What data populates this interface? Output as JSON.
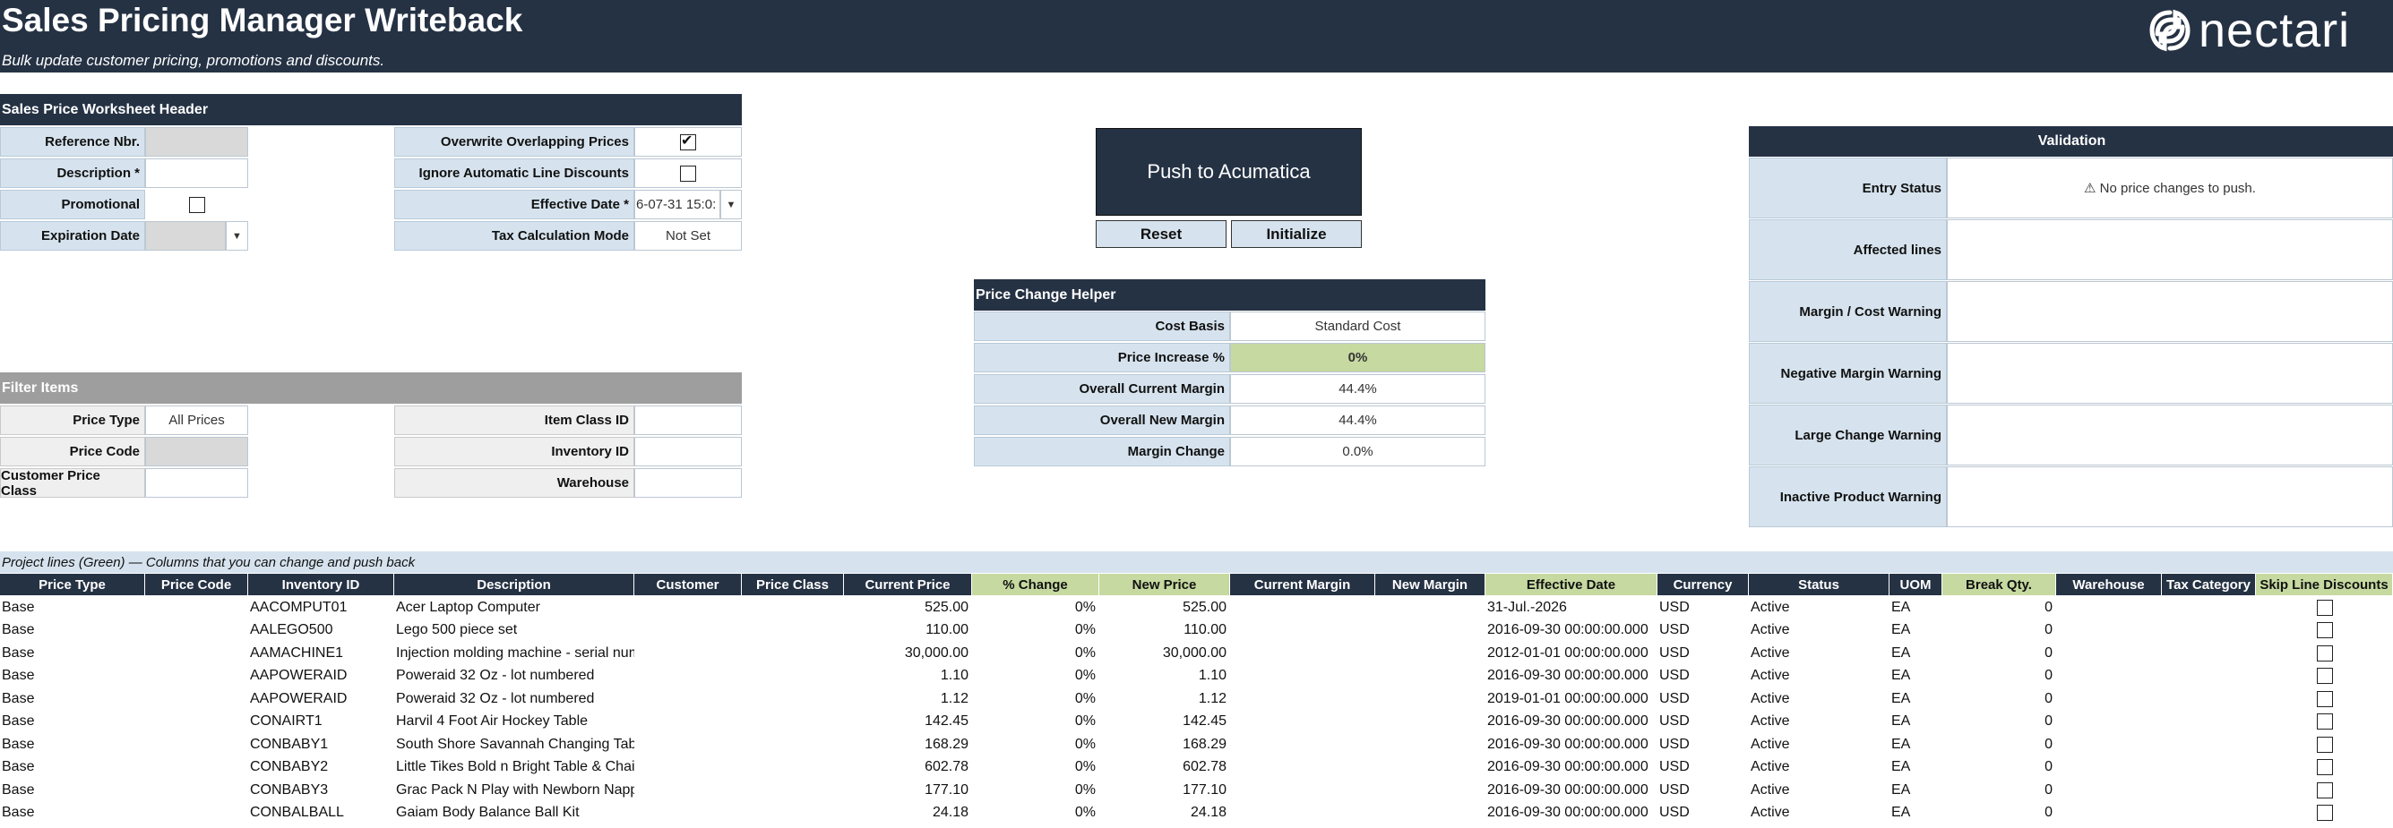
{
  "header": {
    "title": "Sales Pricing Manager Writeback",
    "subtitle": "Bulk update customer pricing, promotions and discounts.",
    "logo_text": "nectari"
  },
  "worksheet_header": {
    "title": "Sales Price Worksheet Header",
    "reference_nbr_label": "Reference Nbr.",
    "reference_nbr_value": "",
    "description_label": "Description *",
    "description_value": "",
    "promotional_label": "Promotional",
    "promotional_checked": false,
    "expiration_date_label": "Expiration Date",
    "expiration_date_value": "",
    "overwrite_label": "Overwrite Overlapping Prices",
    "overwrite_checked": true,
    "ignore_label": "Ignore Automatic Line Discounts",
    "ignore_checked": false,
    "effective_date_label": "Effective Date *",
    "effective_date_value": "6-07-31 15:0:",
    "tax_mode_label": "Tax Calculation Mode",
    "tax_mode_value": "Not Set"
  },
  "actions": {
    "push_label": "Push to Acumatica",
    "reset_label": "Reset",
    "initialize_label": "Initialize"
  },
  "price_helper": {
    "title": "Price Change Helper",
    "cost_basis_label": "Cost Basis",
    "cost_basis_value": "Standard Cost",
    "price_increase_label": "Price Increase %",
    "price_increase_value": "0%",
    "overall_current_margin_label": "Overall Current Margin",
    "overall_current_margin_value": "44.4%",
    "overall_new_margin_label": "Overall New Margin",
    "overall_new_margin_value": "44.4%",
    "margin_change_label": "Margin Change",
    "margin_change_value": "0.0%"
  },
  "validation": {
    "title": "Validation",
    "entry_status_label": "Entry Status",
    "entry_status_value": "⚠ No price changes to push.",
    "affected_lines_label": "Affected lines",
    "margin_cost_warning_label": "Margin / Cost Warning",
    "negative_margin_warning_label": "Negative Margin Warning",
    "large_change_warning_label": "Large Change Warning",
    "inactive_product_warning_label": "Inactive Product Warning"
  },
  "filter": {
    "title": "Filter Items",
    "price_type_label": "Price Type",
    "price_type_value": "All Prices",
    "price_code_label": "Price Code",
    "price_code_value": "",
    "customer_price_class_label": "Customer Price Class",
    "customer_price_class_value": "",
    "item_class_label": "Item Class ID",
    "item_class_value": "",
    "inventory_id_label": "Inventory ID",
    "inventory_id_value": "",
    "warehouse_label": "Warehouse",
    "warehouse_value": ""
  },
  "grid": {
    "legend": "Project lines  (Green) — Columns that you can change and push back",
    "columns": [
      "Price Type",
      "Price Code",
      "Inventory ID",
      "Description",
      "Customer",
      "Price Class",
      "Current Price",
      "% Change",
      "New Price",
      "Current Margin",
      "New Margin",
      "Effective Date",
      "Currency",
      "Status",
      "UOM",
      "Break Qty.",
      "Warehouse",
      "Tax Category",
      "Skip Line Discounts"
    ],
    "editable_columns": [
      "% Change",
      "New Price",
      "Effective Date",
      "Break Qty.",
      "Skip Line Discounts"
    ],
    "rows": [
      [
        "Base",
        "",
        "AACOMPUT01",
        "Acer Laptop Computer",
        "",
        "",
        "525.00",
        "0%",
        "525.00",
        "",
        "",
        "31-Jul.-2026",
        "USD",
        "Active",
        "EA",
        "0",
        "",
        "",
        ""
      ],
      [
        "Base",
        "",
        "AALEGO500",
        "Lego 500 piece set",
        "",
        "",
        "110.00",
        "0%",
        "110.00",
        "",
        "",
        "2016-09-30 00:00:00.000",
        "USD",
        "Active",
        "EA",
        "0",
        "",
        "",
        ""
      ],
      [
        "Base",
        "",
        "AAMACHINE1",
        "Injection molding machine - serial numbered",
        "",
        "",
        "30,000.00",
        "0%",
        "30,000.00",
        "",
        "",
        "2012-01-01 00:00:00.000",
        "USD",
        "Active",
        "EA",
        "0",
        "",
        "",
        ""
      ],
      [
        "Base",
        "",
        "AAPOWERAID",
        "Poweraid 32 Oz - lot numbered",
        "",
        "",
        "1.10",
        "0%",
        "1.10",
        "",
        "",
        "2016-09-30 00:00:00.000",
        "USD",
        "Active",
        "EA",
        "0",
        "",
        "",
        ""
      ],
      [
        "Base",
        "",
        "AAPOWERAID",
        "Poweraid 32 Oz - lot numbered",
        "",
        "",
        "1.12",
        "0%",
        "1.12",
        "",
        "",
        "2019-01-01 00:00:00.000",
        "USD",
        "Active",
        "EA",
        "0",
        "",
        "",
        ""
      ],
      [
        "Base",
        "",
        "CONAIRT1",
        "Harvil 4 Foot Air Hockey Table",
        "",
        "",
        "142.45",
        "0%",
        "142.45",
        "",
        "",
        "2016-09-30 00:00:00.000",
        "USD",
        "Active",
        "EA",
        "0",
        "",
        "",
        ""
      ],
      [
        "Base",
        "",
        "CONBABY1",
        "South Shore Savannah Changing Table",
        "",
        "",
        "168.29",
        "0%",
        "168.29",
        "",
        "",
        "2016-09-30 00:00:00.000",
        "USD",
        "Active",
        "EA",
        "0",
        "",
        "",
        ""
      ],
      [
        "Base",
        "",
        "CONBABY2",
        "Little Tikes Bold n Bright Table & Chairs",
        "",
        "",
        "602.78",
        "0%",
        "602.78",
        "",
        "",
        "2016-09-30 00:00:00.000",
        "USD",
        "Active",
        "EA",
        "0",
        "",
        "",
        ""
      ],
      [
        "Base",
        "",
        "CONBABY3",
        "Grac Pack N Play with Newborn Napperstation",
        "",
        "",
        "177.10",
        "0%",
        "177.10",
        "",
        "",
        "2016-09-30 00:00:00.000",
        "USD",
        "Active",
        "EA",
        "0",
        "",
        "",
        ""
      ],
      [
        "Base",
        "",
        "CONBALBALL",
        "Gaiam Body Balance Ball Kit",
        "",
        "",
        "24.18",
        "0%",
        "24.18",
        "",
        "",
        "2016-09-30 00:00:00.000",
        "USD",
        "Active",
        "EA",
        "0",
        "",
        "",
        ""
      ]
    ]
  }
}
